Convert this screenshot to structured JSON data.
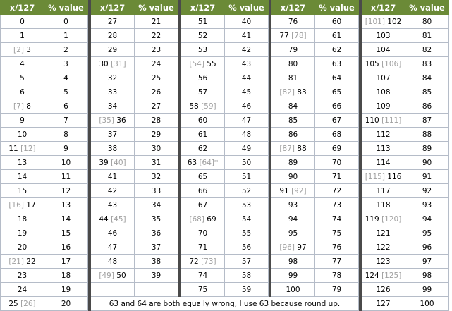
{
  "header": {
    "x": "x/127",
    "pct": "% value"
  },
  "columns": [
    {
      "rows": [
        {
          "x": "0",
          "v": "0"
        },
        {
          "x": "1",
          "v": "1"
        },
        {
          "x": "3",
          "xb": "[2]",
          "v": "2"
        },
        {
          "x": "4",
          "v": "3"
        },
        {
          "x": "5",
          "v": "4"
        },
        {
          "x": "6",
          "v": "5"
        },
        {
          "x": "8",
          "xb": "[7]",
          "v": "6"
        },
        {
          "x": "9",
          "v": "7"
        },
        {
          "x": "10",
          "v": "8"
        },
        {
          "x": "11",
          "xa": "[12]",
          "v": "9"
        },
        {
          "x": "13",
          "v": "10"
        },
        {
          "x": "14",
          "v": "11"
        },
        {
          "x": "15",
          "v": "12"
        },
        {
          "x": "17",
          "xb": "[16]",
          "v": "13"
        },
        {
          "x": "18",
          "v": "14"
        },
        {
          "x": "19",
          "v": "15"
        },
        {
          "x": "20",
          "v": "16"
        },
        {
          "x": "22",
          "xb": "[21]",
          "v": "17"
        },
        {
          "x": "23",
          "v": "18"
        },
        {
          "x": "24",
          "v": "19"
        },
        {
          "x": "25",
          "xa": "[26]",
          "v": "20"
        }
      ]
    },
    {
      "rows": [
        {
          "x": "27",
          "v": "21"
        },
        {
          "x": "28",
          "v": "22"
        },
        {
          "x": "29",
          "v": "23"
        },
        {
          "x": "30",
          "xa": "[31]",
          "v": "24"
        },
        {
          "x": "32",
          "v": "25"
        },
        {
          "x": "33",
          "v": "26"
        },
        {
          "x": "34",
          "v": "27"
        },
        {
          "x": "36",
          "xb": "[35]",
          "v": "28"
        },
        {
          "x": "37",
          "v": "29"
        },
        {
          "x": "38",
          "v": "30"
        },
        {
          "x": "39",
          "xa": "[40]",
          "v": "31"
        },
        {
          "x": "41",
          "v": "32"
        },
        {
          "x": "42",
          "v": "33"
        },
        {
          "x": "43",
          "v": "34"
        },
        {
          "x": "44",
          "xa": "[45]",
          "v": "35"
        },
        {
          "x": "46",
          "v": "36"
        },
        {
          "x": "47",
          "v": "37"
        },
        {
          "x": "48",
          "v": "38"
        },
        {
          "x": "50",
          "xb": "[49]",
          "v": "39"
        }
      ]
    },
    {
      "rows": [
        {
          "x": "51",
          "v": "40"
        },
        {
          "x": "52",
          "v": "41"
        },
        {
          "x": "53",
          "v": "42"
        },
        {
          "x": "55",
          "xb": "[54]",
          "v": "43"
        },
        {
          "x": "56",
          "v": "44"
        },
        {
          "x": "57",
          "v": "45"
        },
        {
          "x": "58",
          "xa": "[59]",
          "v": "46"
        },
        {
          "x": "60",
          "v": "47"
        },
        {
          "x": "61",
          "v": "48"
        },
        {
          "x": "62",
          "v": "49"
        },
        {
          "x": "63",
          "xa": "[64]*",
          "v": "50"
        },
        {
          "x": "65",
          "v": "51"
        },
        {
          "x": "66",
          "v": "52"
        },
        {
          "x": "67",
          "v": "53"
        },
        {
          "x": "69",
          "xb": "[68]",
          "v": "54"
        },
        {
          "x": "70",
          "v": "55"
        },
        {
          "x": "71",
          "v": "56"
        },
        {
          "x": "72",
          "xa": "[73]",
          "v": "57"
        },
        {
          "x": "74",
          "v": "58"
        },
        {
          "x": "75",
          "v": "59"
        }
      ]
    },
    {
      "rows": [
        {
          "x": "76",
          "v": "60"
        },
        {
          "x": "77",
          "xa": "[78]",
          "v": "61"
        },
        {
          "x": "79",
          "v": "62"
        },
        {
          "x": "80",
          "v": "63"
        },
        {
          "x": "81",
          "v": "64"
        },
        {
          "x": "83",
          "xb": "[82]",
          "v": "65"
        },
        {
          "x": "84",
          "v": "66"
        },
        {
          "x": "85",
          "v": "67"
        },
        {
          "x": "86",
          "v": "68"
        },
        {
          "x": "88",
          "xb": "[87]",
          "v": "69"
        },
        {
          "x": "89",
          "v": "70"
        },
        {
          "x": "90",
          "v": "71"
        },
        {
          "x": "91",
          "xa": "[92]",
          "v": "72"
        },
        {
          "x": "93",
          "v": "73"
        },
        {
          "x": "94",
          "v": "74"
        },
        {
          "x": "95",
          "v": "75"
        },
        {
          "x": "97",
          "xb": "[96]",
          "v": "76"
        },
        {
          "x": "98",
          "v": "77"
        },
        {
          "x": "99",
          "v": "78"
        },
        {
          "x": "100",
          "v": "79"
        }
      ]
    },
    {
      "rows": [
        {
          "x": "102",
          "xb": "[101]",
          "v": "80"
        },
        {
          "x": "103",
          "v": "81"
        },
        {
          "x": "104",
          "v": "82"
        },
        {
          "x": "105",
          "xa": "[106]",
          "v": "83"
        },
        {
          "x": "107",
          "v": "84"
        },
        {
          "x": "108",
          "v": "85"
        },
        {
          "x": "109",
          "v": "86"
        },
        {
          "x": "110",
          "xa": "[111]",
          "v": "87"
        },
        {
          "x": "112",
          "v": "88"
        },
        {
          "x": "113",
          "v": "89"
        },
        {
          "x": "114",
          "v": "90"
        },
        {
          "x": "116",
          "xb": "[115]",
          "v": "91"
        },
        {
          "x": "117",
          "v": "92"
        },
        {
          "x": "118",
          "v": "93"
        },
        {
          "x": "119",
          "xa": "[120]",
          "v": "94"
        },
        {
          "x": "121",
          "v": "95"
        },
        {
          "x": "122",
          "v": "96"
        },
        {
          "x": "123",
          "v": "97"
        },
        {
          "x": "124",
          "xa": "[125]",
          "v": "98"
        },
        {
          "x": "126",
          "v": "99"
        },
        {
          "x": "127",
          "v": "100"
        }
      ]
    }
  ],
  "footnote": "63 and 64 are both equally wrong, I use 63 because round up."
}
